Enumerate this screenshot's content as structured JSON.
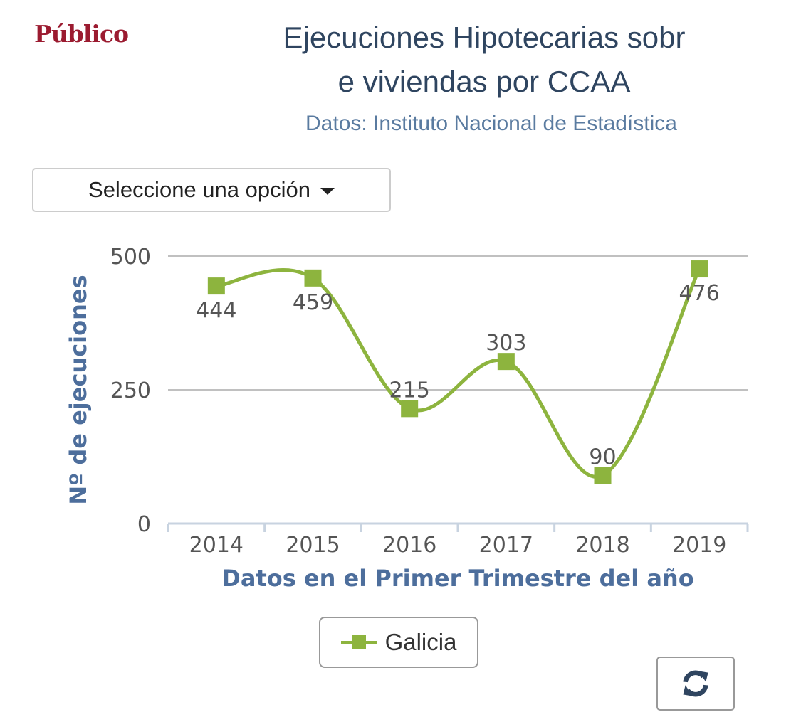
{
  "brand": {
    "logo_text": "Público"
  },
  "header": {
    "title_line1": "Ejecuciones Hipotecarias sobr",
    "title_line2": "e viviendas por CCAA",
    "subtitle": "Datos: Instituto Nacional de Estadística"
  },
  "selector": {
    "label": "Seleccione una opción",
    "icon": "caret-down-icon"
  },
  "legend": {
    "series_label": "Galicia"
  },
  "toolbar": {
    "refresh_icon": "refresh-icon"
  },
  "colors": {
    "series": "#8db43e",
    "axis_title": "#4d6e9c",
    "tick": "#555555",
    "grid": "#c0c0c0"
  },
  "chart_data": {
    "type": "line",
    "categories": [
      "2014",
      "2015",
      "2016",
      "2017",
      "2018",
      "2019"
    ],
    "series": [
      {
        "name": "Galicia",
        "values": [
          444,
          459,
          215,
          303,
          90,
          476
        ]
      }
    ],
    "xlabel": "Datos en el Primer Trimestre del año",
    "ylabel": "Nº de ejecuciones",
    "ylim": [
      0,
      500
    ],
    "yticks": [
      0,
      250,
      500
    ],
    "grid": true,
    "smooth": true,
    "marker": "square",
    "data_labels": true,
    "legend_position": "bottom"
  }
}
